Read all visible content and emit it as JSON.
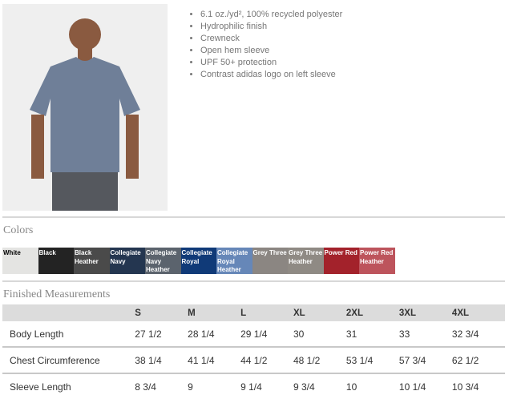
{
  "features": [
    "6.1 oz./yd², 100% recycled polyester",
    "Hydrophilic finish",
    "Crewneck",
    "Open hem sleeve",
    "UPF 50+ protection",
    "Contrast adidas logo on left sleeve"
  ],
  "colors_heading": "Colors",
  "colors": [
    {
      "name": "White",
      "hex": "#e4e4e2",
      "text": "#000"
    },
    {
      "name": "Black",
      "hex": "#232323",
      "text": "#fff"
    },
    {
      "name": "Black Heather",
      "hex": "#4a4a4a",
      "text": "#fff"
    },
    {
      "name": "Collegiate Navy",
      "hex": "#243650",
      "text": "#fff"
    },
    {
      "name": "Collegiate Navy Heather",
      "hex": "#5b636d",
      "text": "#fff"
    },
    {
      "name": "Collegiate Royal",
      "hex": "#103a78",
      "text": "#fff"
    },
    {
      "name": "Collegiate Royal Heather",
      "hex": "#6687b8",
      "text": "#fff"
    },
    {
      "name": "Grey Three",
      "hex": "#8b8682",
      "text": "#fff"
    },
    {
      "name": "Grey Three Heather",
      "hex": "#8f8a84",
      "text": "#fff"
    },
    {
      "name": "Power Red",
      "hex": "#a3222b",
      "text": "#fff"
    },
    {
      "name": "Power Red Heather",
      "hex": "#bd545c",
      "text": "#fff"
    }
  ],
  "measurements_heading": "Finished Measurements",
  "sizes": [
    "S",
    "M",
    "L",
    "XL",
    "2XL",
    "3XL",
    "4XL"
  ],
  "rows": [
    {
      "label": "Body Length",
      "values": [
        "27 1/2",
        "28 1/4",
        "29 1/4",
        "30",
        "31",
        "33",
        "32 3/4"
      ]
    },
    {
      "label": "Chest Circumference",
      "values": [
        "38 1/4",
        "41 1/4",
        "44 1/2",
        "48 1/2",
        "53 1/4",
        "57 3/4",
        "62 1/2"
      ]
    },
    {
      "label": "Sleeve Length",
      "values": [
        "8 3/4",
        "9",
        "9 1/4",
        "9 3/4",
        "10",
        "10 1/4",
        "10 3/4"
      ]
    }
  ]
}
